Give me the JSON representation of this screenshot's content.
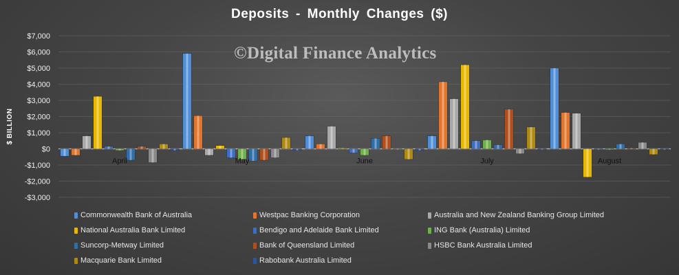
{
  "chart_data": {
    "type": "bar",
    "title": "Deposits  - Monthly  Changes  ($)",
    "watermark": "©Digital Finance Analytics",
    "ylabel": "$ BILLION",
    "xlabel": "",
    "ylim": [
      -3000,
      7000
    ],
    "yticks": [
      -3000,
      -2000,
      -1000,
      0,
      1000,
      2000,
      3000,
      4000,
      5000,
      6000,
      7000
    ],
    "ytick_labels": [
      "-$3,000",
      "-$2,000",
      "-$1,000",
      "$0",
      "$1,000",
      "$2,000",
      "$3,000",
      "$4,000",
      "$5,000",
      "$6,000",
      "$7,000"
    ],
    "grid": true,
    "legend_position": "bottom",
    "categories": [
      "April",
      "May",
      "June",
      "July",
      "August"
    ],
    "series": [
      {
        "name": "Commonwealth Bank of Australia",
        "color": "#4f8fd8",
        "values": [
          -450,
          5900,
          800,
          800,
          5000
        ]
      },
      {
        "name": "Westpac Banking Corporation",
        "color": "#e2742b",
        "values": [
          -400,
          2050,
          300,
          4150,
          2250
        ]
      },
      {
        "name": "Australia and New Zealand Banking Group Limited",
        "color": "#a9a9a9",
        "values": [
          800,
          -400,
          1400,
          3100,
          2200
        ]
      },
      {
        "name": "National Australia Bank Limited",
        "color": "#e8b800",
        "values": [
          3250,
          200,
          50,
          5200,
          -1750
        ]
      },
      {
        "name": "Bendigo and Adelaide Bank Limited",
        "color": "#3c6fc4",
        "values": [
          150,
          -550,
          -250,
          500,
          -50
        ]
      },
      {
        "name": "ING Bank (Australia) Limited",
        "color": "#6fb04a",
        "values": [
          -100,
          -650,
          -400,
          550,
          -50
        ]
      },
      {
        "name": "Suncorp-Metway Limited",
        "color": "#2f6ea8",
        "values": [
          -700,
          -750,
          650,
          250,
          300
        ]
      },
      {
        "name": "Bank of Queensland Limited",
        "color": "#b04f1c",
        "values": [
          150,
          -700,
          800,
          2450,
          50
        ]
      },
      {
        "name": "HSBC Bank Australia Limited",
        "color": "#8a8a8a",
        "values": [
          -850,
          -550,
          -50,
          -300,
          400
        ]
      },
      {
        "name": "Macquarie Bank Limited",
        "color": "#b08a10",
        "values": [
          300,
          700,
          -650,
          1350,
          -350
        ]
      },
      {
        "name": "Rabobank Australia Limited",
        "color": "#2c55a0",
        "values": [
          -100,
          -100,
          -100,
          -50,
          -50
        ]
      }
    ]
  }
}
